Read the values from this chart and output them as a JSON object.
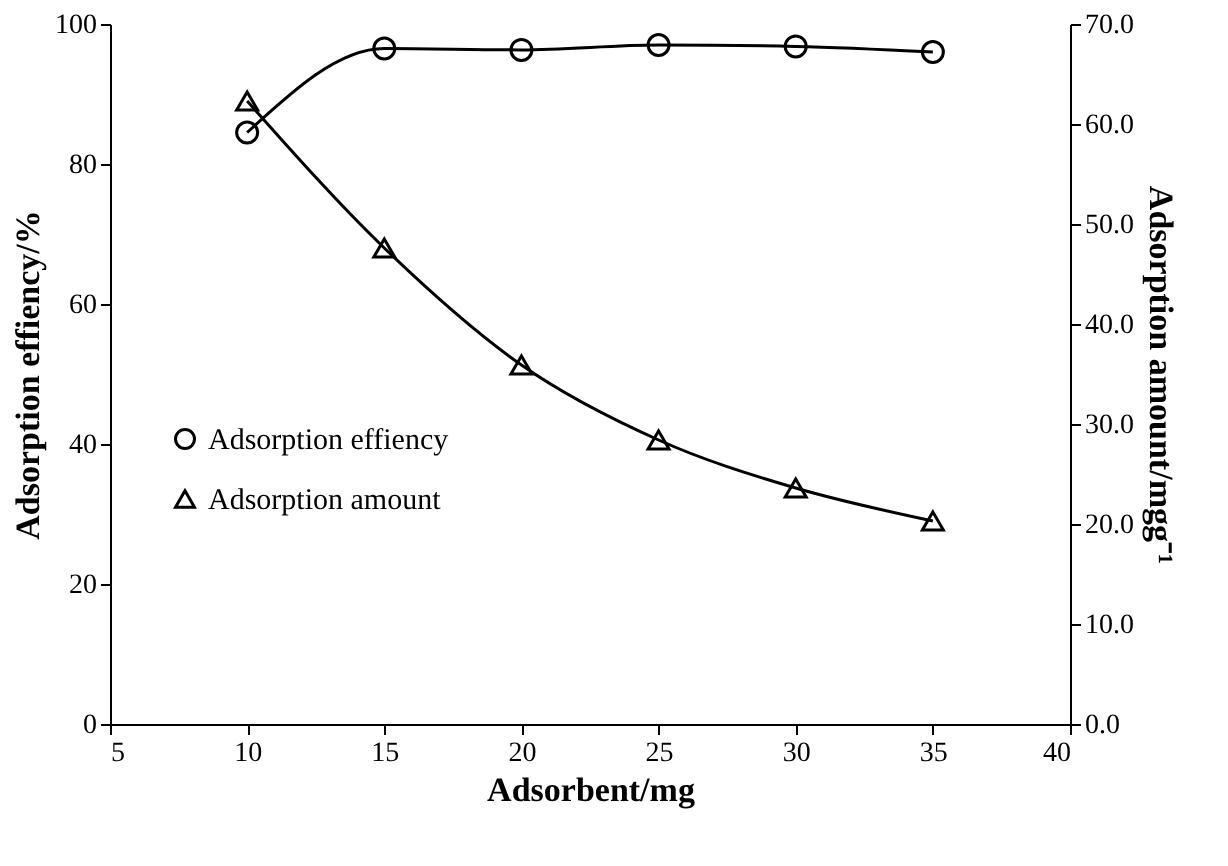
{
  "chart_data": {
    "type": "line",
    "xlabel": "Adsorbent/mg",
    "ylabel": "Adsorption effiency/%",
    "y2label": "Adsorption amount/mgg⁻¹",
    "x": [
      10,
      15,
      20,
      25,
      30,
      35
    ],
    "series": [
      {
        "name": "Adsorption effiency",
        "color": "#000000",
        "marker": "circle",
        "values": [
          84.5,
          96.5,
          96.3,
          97.0,
          96.8,
          96.0
        ]
      },
      {
        "name": "Adsorption amount",
        "color": "#000000",
        "marker": "triangle",
        "axis": "y2",
        "values": [
          62.3,
          47.6,
          35.9,
          28.4,
          23.6,
          20.3
        ]
      }
    ],
    "xlim": [
      5,
      40
    ],
    "xticks": [
      5,
      10,
      15,
      20,
      25,
      30,
      35,
      40
    ],
    "ylim": [
      0,
      100
    ],
    "yticks": [
      0,
      20,
      40,
      60,
      80,
      100
    ],
    "y2lim": [
      0,
      70
    ],
    "y2ticks": [
      {
        "value": 0,
        "label": "0.0"
      },
      {
        "value": 10,
        "label": "10.0"
      },
      {
        "value": 20,
        "label": "20.0"
      },
      {
        "value": 30,
        "label": "30.0"
      },
      {
        "value": 40,
        "label": "40.0"
      },
      {
        "value": 50,
        "label": "50.0"
      },
      {
        "value": 60,
        "label": "60.0"
      },
      {
        "value": 70,
        "label": "70.0"
      }
    ],
    "grid": false,
    "legend": "left",
    "line_style": "solid"
  }
}
